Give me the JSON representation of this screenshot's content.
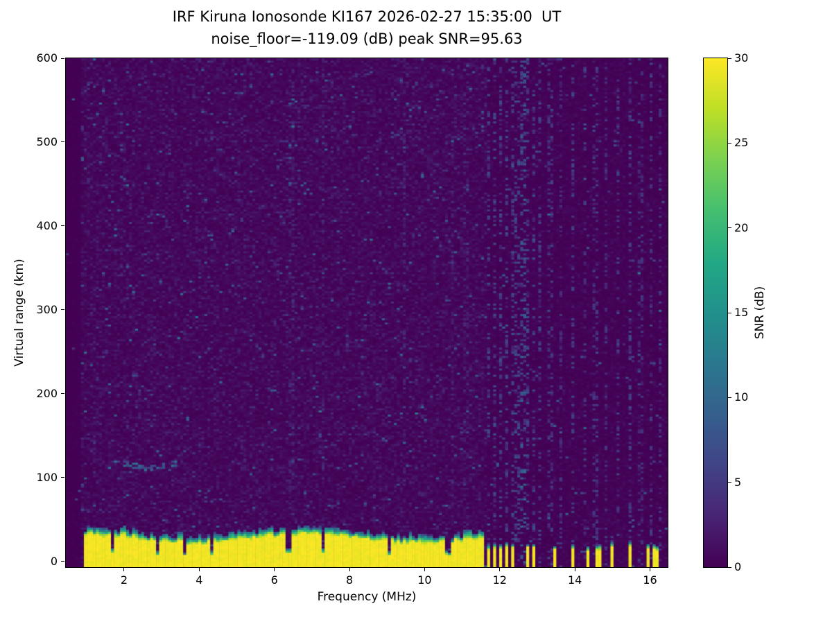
{
  "figure": {
    "title_line1": "IRF Kiruna Ionosonde KI167 2026-02-27 15:35:00  UT",
    "title_line2": "noise_floor=-119.09 (dB) peak SNR=95.63",
    "xlabel": "Frequency (MHz)",
    "ylabel": "Virtual range (km)",
    "colorbar_label": "SNR (dB)"
  },
  "chart_data": {
    "type": "heatmap",
    "title": "IRF Kiruna Ionosonde KI167 2026-02-27 15:35:00  UT",
    "subtitle": "noise_floor=-119.09 (dB) peak SNR=95.63",
    "xlabel": "Frequency (MHz)",
    "ylabel": "Virtual range (km)",
    "station": "KI167",
    "timestamp_ut": "2026-02-27 15:35:00",
    "noise_floor_db": -119.09,
    "peak_snr_db": 95.63,
    "x_range_mhz": [
      0.45,
      16.47
    ],
    "y_range_km": [
      -7,
      600
    ],
    "x_ticks": [
      2,
      4,
      6,
      8,
      10,
      12,
      14,
      16
    ],
    "y_ticks": [
      0,
      100,
      200,
      300,
      400,
      500,
      600
    ],
    "colorbar": {
      "label": "SNR (dB)",
      "min": 0,
      "max": 30,
      "ticks": [
        0,
        5,
        10,
        15,
        20,
        25,
        30
      ],
      "colormap": "viridis"
    },
    "viridis_anchors": [
      "#440154",
      "#482475",
      "#414487",
      "#355f8d",
      "#2a788e",
      "#21918c",
      "#22a884",
      "#44bf70",
      "#7ad151",
      "#bddf26",
      "#fde725"
    ],
    "features": {
      "ground_return_band": {
        "freq_start_mhz": 0.9,
        "freq_end_mhz": 11.62,
        "top_range_km_min": 18,
        "top_range_km_max": 33,
        "snr_db": 30
      },
      "band_notch_freqs_mhz": [
        1.68,
        2.9,
        3.62,
        4.32,
        6.38,
        7.28,
        9.05,
        10.62
      ],
      "striped_band": {
        "freq_start_mhz": 11.66,
        "freq_end_mhz": 13.06,
        "stripe_period_mhz": 0.155,
        "stripe_duty": 0.45,
        "top_range_km": 18
      },
      "isolated_columns_mhz": [
        13.5,
        13.93,
        14.33,
        14.63,
        15.0,
        15.45,
        15.95,
        16.15
      ],
      "echo_trace": {
        "freq_start_mhz": 1.95,
        "freq_end_mhz": 3.45,
        "range_km": 115
      },
      "rfi_stripes": [
        {
          "f": 6.45,
          "s": 0.35
        },
        {
          "f": 7.3,
          "s": 0.3
        },
        {
          "f": 9.45,
          "s": 0.4
        },
        {
          "f": 10.75,
          "s": 0.3
        },
        {
          "f": 11.1,
          "s": 0.3
        },
        {
          "f": 11.72,
          "s": 0.9
        },
        {
          "f": 11.87,
          "s": 0.9
        },
        {
          "f": 12.02,
          "s": 0.9
        },
        {
          "f": 12.17,
          "s": 0.9
        },
        {
          "f": 12.32,
          "s": 0.9
        },
        {
          "f": 12.47,
          "s": 0.9
        },
        {
          "f": 12.62,
          "s": 1.2
        },
        {
          "f": 12.77,
          "s": 0.9
        },
        {
          "f": 12.92,
          "s": 0.9
        },
        {
          "f": 13.07,
          "s": 0.8
        },
        {
          "f": 13.35,
          "s": 0.7
        },
        {
          "f": 13.65,
          "s": 0.6
        },
        {
          "f": 13.95,
          "s": 0.8
        },
        {
          "f": 14.25,
          "s": 0.7
        },
        {
          "f": 14.55,
          "s": 0.7
        },
        {
          "f": 14.85,
          "s": 0.6
        },
        {
          "f": 15.15,
          "s": 0.7
        },
        {
          "f": 15.45,
          "s": 0.8
        },
        {
          "f": 15.75,
          "s": 0.6
        },
        {
          "f": 16.05,
          "s": 0.7
        },
        {
          "f": 16.25,
          "s": 0.6
        }
      ]
    }
  }
}
